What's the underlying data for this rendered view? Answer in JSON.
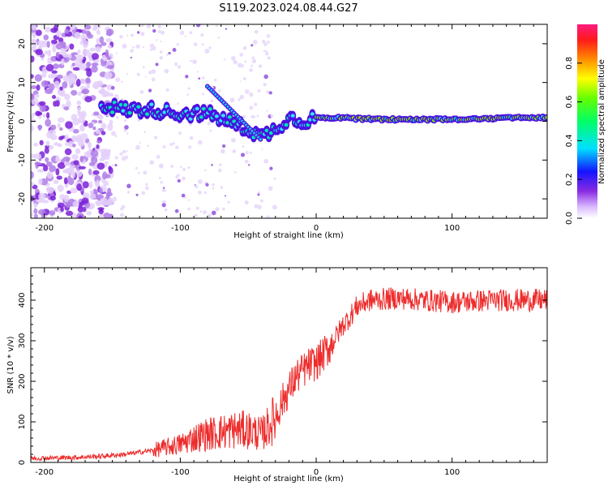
{
  "title": "S119.2023.024.08.44.G27",
  "chart_data": [
    {
      "type": "heatmap",
      "xlabel": "Height of straight line (km)",
      "ylabel": "Frequency (Hz)",
      "xlim": [
        -210,
        170
      ],
      "ylim": [
        -25,
        25
      ],
      "xticks": [
        -200,
        -100,
        0,
        100
      ],
      "yticks": [
        -20,
        -10,
        0,
        10,
        20
      ],
      "colorbar": {
        "label": "Normalized spectral amplitude",
        "range": [
          0,
          1
        ],
        "ticks": [
          0.0,
          0.2,
          0.4,
          0.6,
          0.8
        ],
        "tick_labels": [
          "0.0",
          "0.2",
          "0.4",
          "0.6",
          "0.8"
        ]
      },
      "ridge": [
        {
          "x": -155,
          "y": 4
        },
        {
          "x": -140,
          "y": 3
        },
        {
          "x": -120,
          "y": 3
        },
        {
          "x": -100,
          "y": 2
        },
        {
          "x": -80,
          "y": 2
        },
        {
          "x": -65,
          "y": 0
        },
        {
          "x": -50,
          "y": -2
        },
        {
          "x": -40,
          "y": -4
        },
        {
          "x": -30,
          "y": -2
        },
        {
          "x": -20,
          "y": 1
        },
        {
          "x": -10,
          "y": 0
        },
        {
          "x": 0,
          "y": 1
        },
        {
          "x": 50,
          "y": 0.5
        },
        {
          "x": 100,
          "y": 0.5
        },
        {
          "x": 170,
          "y": 1
        }
      ]
    },
    {
      "type": "line",
      "xlabel": "Height of straight line (km)",
      "ylabel": "SNR (10 * v/v)",
      "xlim": [
        -210,
        170
      ],
      "ylim": [
        0,
        480
      ],
      "xticks": [
        -200,
        -100,
        0,
        100
      ],
      "yticks": [
        0,
        100,
        200,
        300,
        400
      ],
      "series": [
        {
          "color": "#ee2c2c",
          "x": [
            -210,
            -180,
            -160,
            -140,
            -120,
            -100,
            -90,
            -80,
            -70,
            -60,
            -50,
            -40,
            -30,
            -25,
            -20,
            -15,
            -10,
            -5,
            0,
            10,
            20,
            25,
            30,
            40,
            60,
            80,
            100,
            130,
            150,
            170
          ],
          "y": [
            10,
            12,
            15,
            20,
            30,
            45,
            60,
            70,
            75,
            80,
            80,
            70,
            110,
            150,
            180,
            210,
            225,
            240,
            245,
            285,
            340,
            360,
            385,
            400,
            405,
            400,
            395,
            400,
            400,
            400
          ]
        }
      ]
    }
  ]
}
